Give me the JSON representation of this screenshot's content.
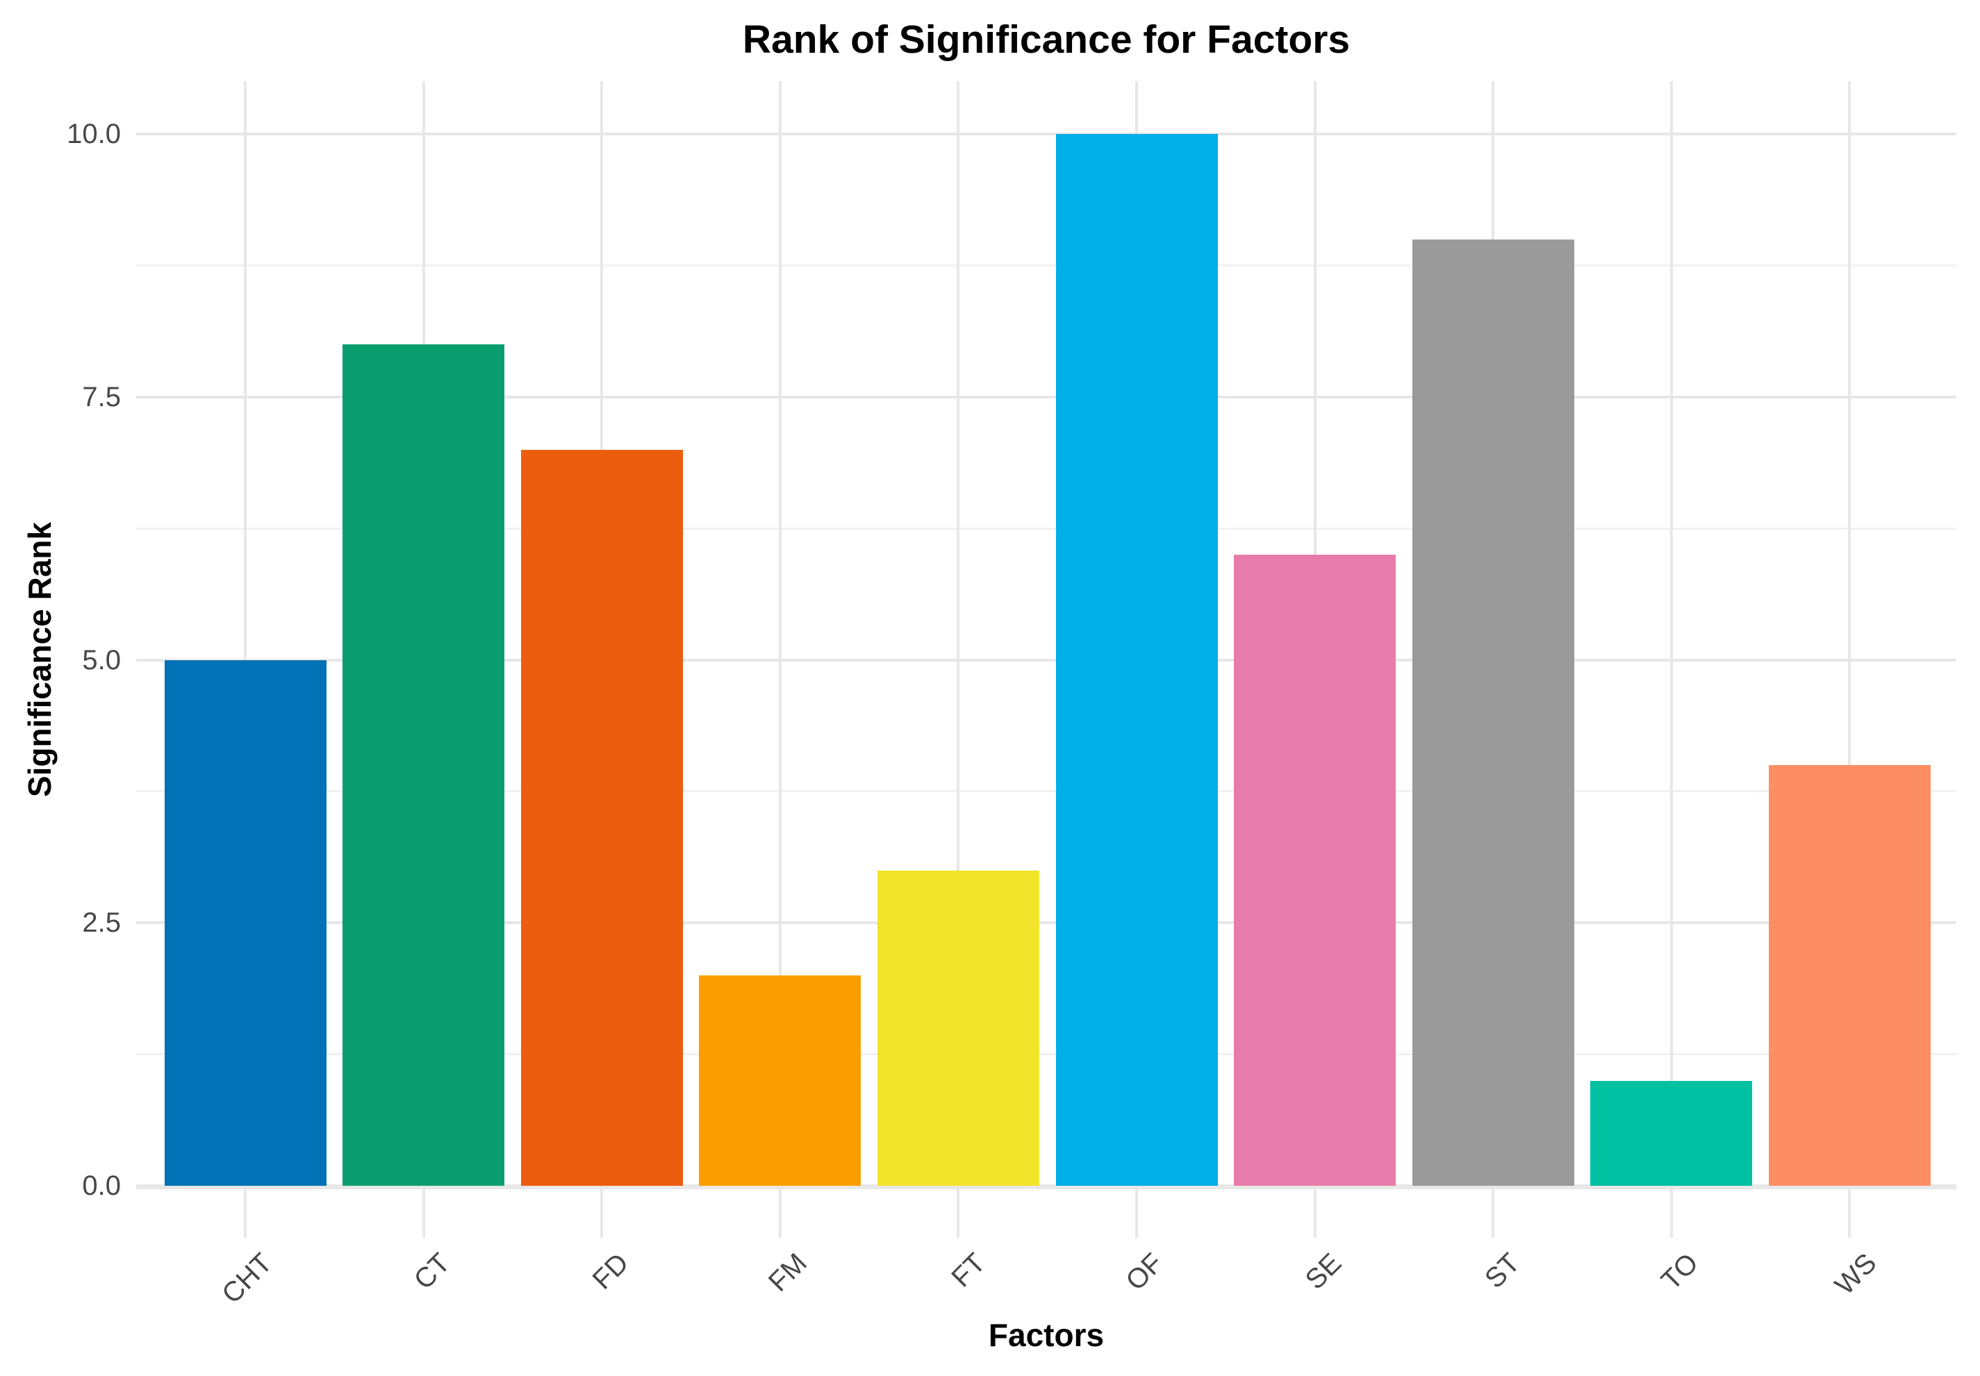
{
  "chart_data": {
    "type": "bar",
    "title": "Rank of Significance for Factors",
    "xlabel": "Factors",
    "ylabel": "Significance Rank",
    "categories": [
      "CHT",
      "CT",
      "FD",
      "FM",
      "FT",
      "OF",
      "SE",
      "ST",
      "TO",
      "WS"
    ],
    "values": [
      5,
      8,
      7,
      2,
      3,
      10,
      6,
      9,
      1,
      4
    ],
    "bar_colors": [
      "#0072B5",
      "#0A9E6E",
      "#EC5E0D",
      "#FA9E00",
      "#F2E42B",
      "#00AEE8",
      "#E77CAA",
      "#9A9A9A",
      "#00C0A2",
      "#FD8E64"
    ],
    "ylim": [
      0,
      10
    ],
    "ytick_labels": [
      "0.0",
      "2.5",
      "5.0",
      "7.5",
      "10.0"
    ],
    "ytick_values": [
      0,
      2.5,
      5,
      7.5,
      10
    ],
    "minor_ytick_values": [
      1.25,
      3.75,
      6.25,
      8.75
    ],
    "grid": "horizontal major + minor gridlines; vertical gridline and tick at each category center",
    "legend_position": "none",
    "styles": {
      "background": "#FFFFFF",
      "major_grid_color": "#E7E7E7",
      "minor_grid_color": "#F1F1F1",
      "axis_line_color": "#E8E8E8",
      "tick_color": "#E8E8E8",
      "tick_label_color": "#474747",
      "title_color": "#000000",
      "x_tick_label_rotation_deg": 45,
      "bar_width_fraction": 0.9
    }
  }
}
